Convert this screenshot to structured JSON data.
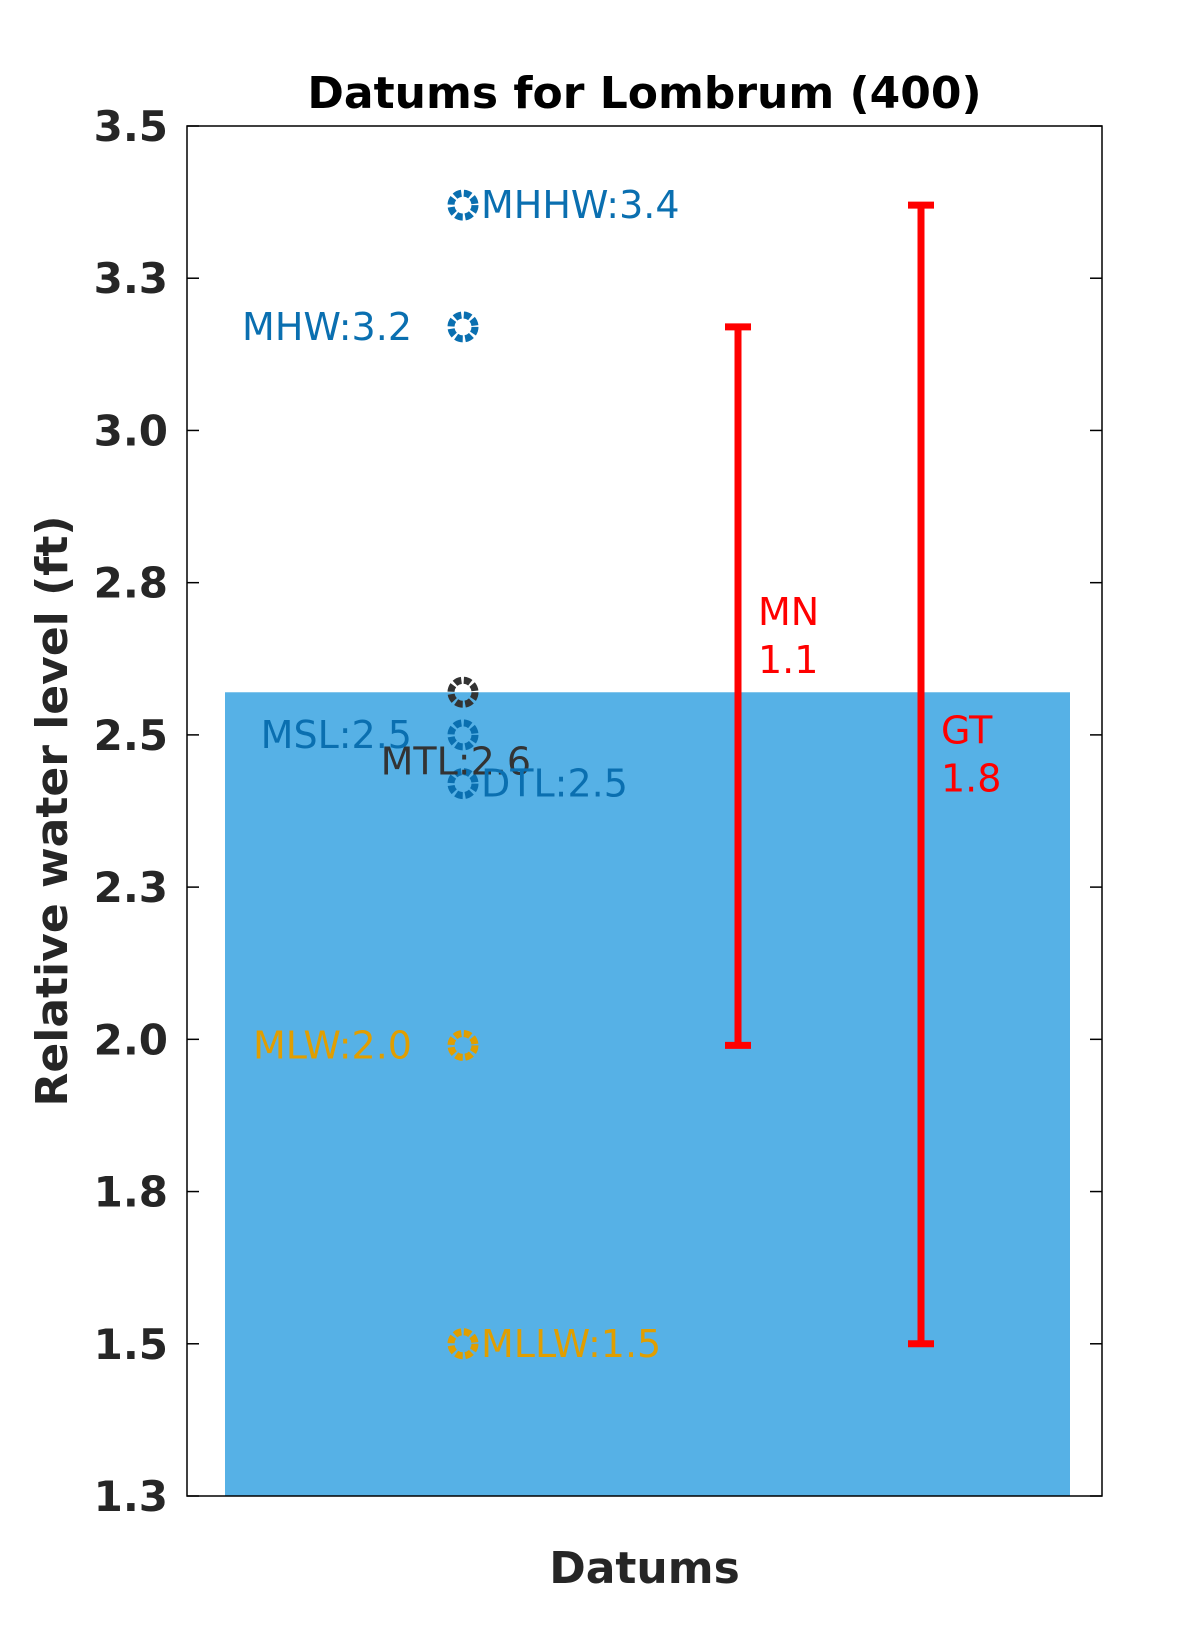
{
  "chart_data": {
    "type": "scatter",
    "title": "Datums for Lombrum (400)",
    "xlabel": "Datums",
    "ylabel": "Relative water level (ft)",
    "ylim": [
      1.3,
      3.55
    ],
    "yticks": [
      1.3,
      1.55,
      1.8,
      2.05,
      2.3,
      2.55,
      2.8,
      3.05,
      3.3,
      3.55
    ],
    "ytick_labels": [
      "1.3",
      "1.5",
      "1.8",
      "2.0",
      "2.3",
      "2.5",
      "2.8",
      "3.0",
      "3.3",
      "3.5"
    ],
    "grid": false,
    "background_bar": {
      "value": 2.62,
      "color": "#56B1E6"
    },
    "datums": [
      {
        "label": "MHHW:3.4",
        "value": 3.42,
        "color": "#0A6FB0",
        "label_side": "right"
      },
      {
        "label": "MHW:3.2",
        "value": 3.22,
        "color": "#0A6FB0",
        "label_side": "left"
      },
      {
        "label": "MTL:2.6",
        "value": 2.62,
        "color": "#333333",
        "label_side": "left-below"
      },
      {
        "label": "MSL:2.5",
        "value": 2.55,
        "color": "#0A6FB0",
        "label_side": "left"
      },
      {
        "label": "DTL:2.5",
        "value": 2.47,
        "color": "#0A6FB0",
        "label_side": "right-below"
      },
      {
        "label": "MLW:2.0",
        "value": 2.04,
        "color": "#E09E00",
        "label_side": "left"
      },
      {
        "label": "MLLW:1.5",
        "value": 1.55,
        "color": "#E09E00",
        "label_side": "right"
      }
    ],
    "ranges": [
      {
        "name": "MN",
        "value_label": "1.1",
        "low": 2.04,
        "high": 3.22,
        "color": "#FF0000"
      },
      {
        "name": "GT",
        "value_label": "1.8",
        "low": 1.55,
        "high": 3.42,
        "color": "#FF0000"
      }
    ]
  }
}
